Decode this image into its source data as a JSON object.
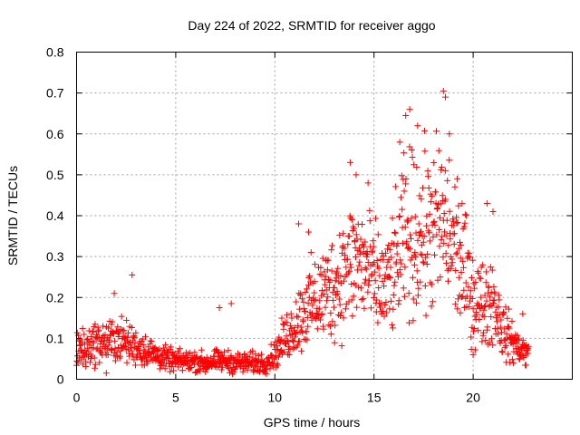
{
  "chart_data": {
    "type": "scatter",
    "title": "Day 224 of 2022, SRMTID for receiver aggo",
    "xlabel": "GPS time / hours",
    "ylabel": "SRMTID / TECUs",
    "xlim": [
      0,
      25
    ],
    "ylim": [
      0,
      0.8
    ],
    "xticks": [
      0,
      5,
      10,
      15,
      20
    ],
    "xtick_labels": [
      "0",
      "5",
      "10",
      "15",
      "20"
    ],
    "yticks": [
      0,
      0.1,
      0.2,
      0.3,
      0.4,
      0.5,
      0.6,
      0.7,
      0.8
    ],
    "ytick_labels": [
      "0",
      "0.1",
      "0.2",
      "0.3",
      "0.4",
      "0.5",
      "0.6",
      "0.7",
      "0.8"
    ],
    "grid": true,
    "marker": "+",
    "marker_color": "#ff0000",
    "series": [
      {
        "name": "SRMTID",
        "trend": [
          [
            0.0,
            0.07
          ],
          [
            0.5,
            0.08
          ],
          [
            1.0,
            0.09
          ],
          [
            1.5,
            0.09
          ],
          [
            2.0,
            0.1
          ],
          [
            2.5,
            0.09
          ],
          [
            3.0,
            0.08
          ],
          [
            3.5,
            0.07
          ],
          [
            4.0,
            0.06
          ],
          [
            4.5,
            0.05
          ],
          [
            5.0,
            0.045
          ],
          [
            5.5,
            0.045
          ],
          [
            6.0,
            0.045
          ],
          [
            6.5,
            0.04
          ],
          [
            7.0,
            0.045
          ],
          [
            7.5,
            0.045
          ],
          [
            8.0,
            0.04
          ],
          [
            8.5,
            0.04
          ],
          [
            9.0,
            0.04
          ],
          [
            9.5,
            0.04
          ],
          [
            10.0,
            0.06
          ],
          [
            10.5,
            0.1
          ],
          [
            11.0,
            0.13
          ],
          [
            11.5,
            0.17
          ],
          [
            12.0,
            0.19
          ],
          [
            12.5,
            0.21
          ],
          [
            13.0,
            0.23
          ],
          [
            13.5,
            0.26
          ],
          [
            14.0,
            0.29
          ],
          [
            14.5,
            0.28
          ],
          [
            15.0,
            0.24
          ],
          [
            15.5,
            0.22
          ],
          [
            16.0,
            0.26
          ],
          [
            16.5,
            0.34
          ],
          [
            17.0,
            0.36
          ],
          [
            17.5,
            0.36
          ],
          [
            18.0,
            0.37
          ],
          [
            18.5,
            0.38
          ],
          [
            19.0,
            0.33
          ],
          [
            19.5,
            0.27
          ],
          [
            20.0,
            0.2
          ],
          [
            20.5,
            0.18
          ],
          [
            21.0,
            0.2
          ],
          [
            21.5,
            0.12
          ],
          [
            22.0,
            0.09
          ],
          [
            22.5,
            0.07
          ],
          [
            22.8,
            0.06
          ]
        ],
        "highlights": [
          [
            2.8,
            0.255
          ],
          [
            1.9,
            0.21
          ],
          [
            7.8,
            0.185
          ],
          [
            7.2,
            0.175
          ],
          [
            11.2,
            0.38
          ],
          [
            11.7,
            0.36
          ],
          [
            13.8,
            0.53
          ],
          [
            14.1,
            0.5
          ],
          [
            14.7,
            0.48
          ],
          [
            16.3,
            0.58
          ],
          [
            16.6,
            0.645
          ],
          [
            16.8,
            0.66
          ],
          [
            17.2,
            0.62
          ],
          [
            18.5,
            0.705
          ],
          [
            18.6,
            0.69
          ],
          [
            18.8,
            0.6
          ],
          [
            19.2,
            0.49
          ],
          [
            20.7,
            0.43
          ],
          [
            21.0,
            0.41
          ],
          [
            22.5,
            0.16
          ],
          [
            20.0,
            0.06
          ],
          [
            1.5,
            0.015
          ],
          [
            6.5,
            0.018
          ]
        ]
      }
    ]
  }
}
